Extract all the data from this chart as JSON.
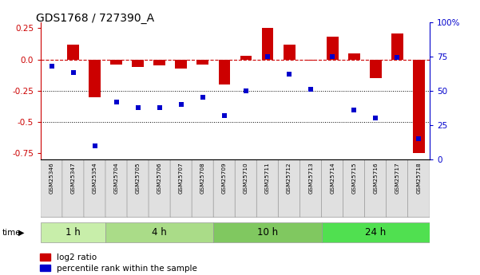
{
  "title": "GDS1768 / 727390_A",
  "samples": [
    "GSM25346",
    "GSM25347",
    "GSM25354",
    "GSM25704",
    "GSM25705",
    "GSM25706",
    "GSM25707",
    "GSM25708",
    "GSM25709",
    "GSM25710",
    "GSM25711",
    "GSM25712",
    "GSM25713",
    "GSM25714",
    "GSM25715",
    "GSM25716",
    "GSM25717",
    "GSM25718"
  ],
  "log2_ratio": [
    0.0,
    0.12,
    -0.3,
    -0.04,
    -0.06,
    -0.05,
    -0.07,
    -0.04,
    -0.2,
    0.03,
    0.25,
    0.12,
    -0.01,
    0.18,
    0.05,
    -0.15,
    0.21,
    -0.75
  ],
  "percentile_rank": [
    68,
    63,
    10,
    42,
    38,
    38,
    40,
    45,
    32,
    50,
    75,
    62,
    51,
    75,
    36,
    30,
    74,
    15
  ],
  "time_groups": [
    {
      "label": "1 h",
      "start": 0,
      "end": 3,
      "color": "#c8eeaa"
    },
    {
      "label": "4 h",
      "start": 3,
      "end": 8,
      "color": "#aadc88"
    },
    {
      "label": "10 h",
      "start": 8,
      "end": 13,
      "color": "#80c860"
    },
    {
      "label": "24 h",
      "start": 13,
      "end": 18,
      "color": "#50e050"
    }
  ],
  "bar_color": "#cc0000",
  "dot_color": "#0000cc",
  "zero_line_color": "#cc0000",
  "dotted_line_color": "#000000",
  "ylim_left": [
    -0.8,
    0.3
  ],
  "ylim_right": [
    0,
    100
  ],
  "yticks_left": [
    -0.75,
    -0.5,
    -0.25,
    0.0,
    0.25
  ],
  "yticks_right": [
    0,
    25,
    50,
    75,
    100
  ],
  "ytick_labels_right": [
    "0",
    "25",
    "50",
    "75",
    "100%"
  ],
  "legend_items": [
    "log2 ratio",
    "percentile rank within the sample"
  ],
  "legend_colors": [
    "#cc0000",
    "#0000cc"
  ]
}
